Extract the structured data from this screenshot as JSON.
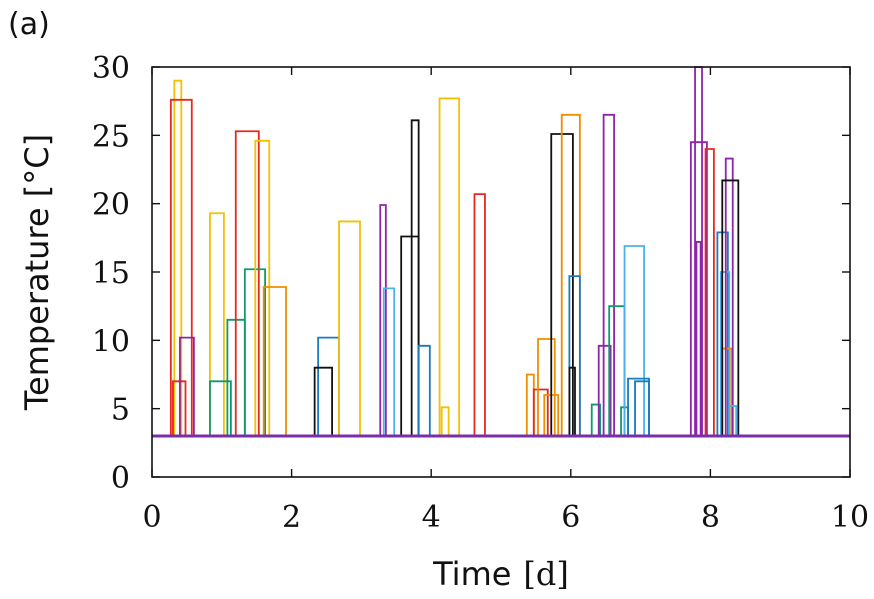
{
  "chart_data": {
    "type": "line",
    "panel_label": "(a)",
    "xlabel": {
      "text": "Time",
      "unit": "[d]"
    },
    "ylabel": "Temperature [°C]",
    "xlim": [
      0,
      10
    ],
    "ylim": [
      0,
      30
    ],
    "xticks": [
      0,
      2,
      4,
      6,
      8,
      10
    ],
    "yticks": [
      0,
      5,
      10,
      15,
      20,
      25,
      30
    ],
    "grid": false,
    "baseline": {
      "value": 3,
      "color": "#7a2fa8"
    },
    "pulses": [
      {
        "color": "#f2c200",
        "x0": 0.32,
        "x1": 0.42,
        "y": 29.0
      },
      {
        "color": "#e8281e",
        "x0": 0.27,
        "x1": 0.57,
        "y": 27.6
      },
      {
        "color": "#e8281e",
        "x0": 0.3,
        "x1": 0.48,
        "y": 7.0
      },
      {
        "color": "#8e24aa",
        "x0": 0.4,
        "x1": 0.6,
        "y": 10.2
      },
      {
        "color": "#f2c200",
        "x0": 0.83,
        "x1": 1.03,
        "y": 19.3
      },
      {
        "color": "#0e9a6e",
        "x0": 0.83,
        "x1": 1.13,
        "y": 7.0
      },
      {
        "color": "#0e9a6e",
        "x0": 1.08,
        "x1": 1.33,
        "y": 11.5
      },
      {
        "color": "#e8281e",
        "x0": 1.2,
        "x1": 1.53,
        "y": 25.3
      },
      {
        "color": "#0e9a6e",
        "x0": 1.33,
        "x1": 1.62,
        "y": 15.2
      },
      {
        "color": "#f2c200",
        "x0": 1.48,
        "x1": 1.68,
        "y": 24.6
      },
      {
        "color": "#ee8f00",
        "x0": 1.6,
        "x1": 1.92,
        "y": 13.9
      },
      {
        "color": "#1a7abf",
        "x0": 2.38,
        "x1": 2.68,
        "y": 10.2
      },
      {
        "color": "#111111",
        "x0": 2.33,
        "x1": 2.58,
        "y": 8.0
      },
      {
        "color": "#f2c200",
        "x0": 2.68,
        "x1": 2.98,
        "y": 18.7
      },
      {
        "color": "#8e24aa",
        "x0": 3.27,
        "x1": 3.35,
        "y": 19.9
      },
      {
        "color": "#4ab2e8",
        "x0": 3.32,
        "x1": 3.47,
        "y": 13.8
      },
      {
        "color": "#111111",
        "x0": 3.57,
        "x1": 3.82,
        "y": 17.6
      },
      {
        "color": "#111111",
        "x0": 3.72,
        "x1": 3.82,
        "y": 26.1
      },
      {
        "color": "#1a7abf",
        "x0": 3.82,
        "x1": 3.98,
        "y": 9.6
      },
      {
        "color": "#f2c200",
        "x0": 4.12,
        "x1": 4.4,
        "y": 27.7
      },
      {
        "color": "#f2c200",
        "x0": 4.15,
        "x1": 4.25,
        "y": 5.1
      },
      {
        "color": "#e8281e",
        "x0": 4.62,
        "x1": 4.77,
        "y": 20.7
      },
      {
        "color": "#ee8f00",
        "x0": 5.37,
        "x1": 5.47,
        "y": 7.5
      },
      {
        "color": "#e8281e",
        "x0": 5.47,
        "x1": 5.67,
        "y": 6.4
      },
      {
        "color": "#ee8f00",
        "x0": 5.53,
        "x1": 5.77,
        "y": 10.1
      },
      {
        "color": "#ee8f00",
        "x0": 5.62,
        "x1": 5.82,
        "y": 6.0
      },
      {
        "color": "#111111",
        "x0": 5.72,
        "x1": 6.03,
        "y": 25.1
      },
      {
        "color": "#ee8f00",
        "x0": 5.87,
        "x1": 6.13,
        "y": 26.5
      },
      {
        "color": "#1a7abf",
        "x0": 5.98,
        "x1": 6.13,
        "y": 14.7
      },
      {
        "color": "#111111",
        "x0": 5.98,
        "x1": 6.06,
        "y": 8.0
      },
      {
        "color": "#0e9a6e",
        "x0": 6.3,
        "x1": 6.42,
        "y": 5.3
      },
      {
        "color": "#8e24aa",
        "x0": 6.4,
        "x1": 6.57,
        "y": 9.6
      },
      {
        "color": "#8e24aa",
        "x0": 6.47,
        "x1": 6.62,
        "y": 26.5
      },
      {
        "color": "#0e9a6e",
        "x0": 6.55,
        "x1": 6.77,
        "y": 12.5
      },
      {
        "color": "#0e9a6e",
        "x0": 6.72,
        "x1": 6.82,
        "y": 5.1
      },
      {
        "color": "#4ab2e8",
        "x0": 6.77,
        "x1": 7.05,
        "y": 16.9
      },
      {
        "color": "#1a7abf",
        "x0": 6.82,
        "x1": 7.12,
        "y": 7.2
      },
      {
        "color": "#1a7abf",
        "x0": 6.92,
        "x1": 7.12,
        "y": 7.0
      },
      {
        "color": "#8e24aa",
        "x0": 7.72,
        "x1": 7.95,
        "y": 24.5
      },
      {
        "color": "#8e24aa",
        "x0": 7.78,
        "x1": 7.88,
        "y": 30.0
      },
      {
        "color": "#8e24aa",
        "x0": 7.8,
        "x1": 7.86,
        "y": 17.2
      },
      {
        "color": "#e8281e",
        "x0": 7.93,
        "x1": 8.05,
        "y": 24.0
      },
      {
        "color": "#1a7abf",
        "x0": 8.1,
        "x1": 8.25,
        "y": 17.9
      },
      {
        "color": "#4ab2e8",
        "x0": 8.15,
        "x1": 8.27,
        "y": 15.0
      },
      {
        "color": "#ee8f00",
        "x0": 8.17,
        "x1": 8.3,
        "y": 9.4
      },
      {
        "color": "#8e24aa",
        "x0": 8.22,
        "x1": 8.32,
        "y": 23.3
      },
      {
        "color": "#111111",
        "x0": 8.17,
        "x1": 8.4,
        "y": 21.7
      },
      {
        "color": "#4ab2e8",
        "x0": 8.27,
        "x1": 8.37,
        "y": 5.2
      }
    ]
  }
}
